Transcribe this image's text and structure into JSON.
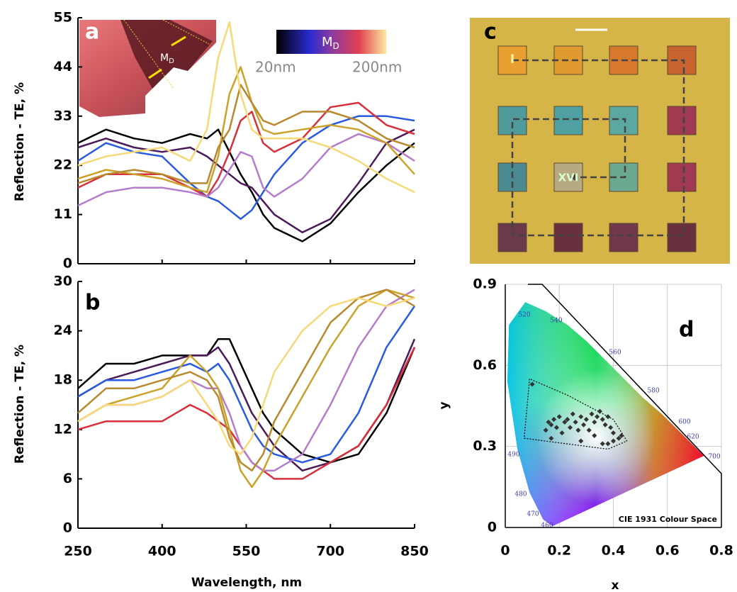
{
  "chart_data": [
    {
      "type": "line",
      "panel_label": "a",
      "ylabel": "Reflection - TE, %",
      "x": [
        250,
        300,
        350,
        400,
        450,
        480,
        500,
        520,
        540,
        560,
        580,
        600,
        650,
        700,
        750,
        800,
        850
      ],
      "xlim": [
        250,
        850
      ],
      "ylim": [
        0,
        55
      ],
      "yticks": [
        0,
        11,
        22,
        33,
        44,
        55
      ],
      "series": [
        {
          "color": "#000000",
          "values": [
            27,
            30,
            28,
            27,
            29,
            28,
            30,
            25,
            20,
            16,
            11,
            8,
            5,
            9,
            16,
            22,
            27
          ]
        },
        {
          "color": "#4a1a5a",
          "values": [
            26,
            28,
            26,
            25,
            26,
            24,
            22,
            20,
            18,
            17,
            14,
            11,
            7,
            10,
            18,
            27,
            30
          ]
        },
        {
          "color": "#2a5ae0",
          "values": [
            23,
            27,
            25,
            24,
            18,
            15,
            14,
            12,
            10,
            12,
            16,
            20,
            27,
            31,
            33,
            33,
            32
          ]
        },
        {
          "color": "#d8303a",
          "values": [
            17,
            20,
            20,
            20,
            17,
            15,
            19,
            25,
            32,
            34,
            27,
            25,
            28,
            35,
            36,
            31,
            29
          ]
        },
        {
          "color": "#b67ccc",
          "values": [
            13,
            16,
            17,
            17,
            16,
            15,
            17,
            21,
            25,
            24,
            17,
            15,
            19,
            26,
            29,
            27,
            23
          ]
        },
        {
          "color": "#caa22a",
          "values": [
            19,
            21,
            20,
            19,
            17,
            16,
            24,
            38,
            44,
            36,
            30,
            29,
            30,
            31,
            30,
            27,
            20
          ]
        },
        {
          "color": "#b8892e",
          "values": [
            18,
            20,
            21,
            20,
            18,
            18,
            26,
            30,
            40,
            36,
            32,
            31,
            34,
            34,
            32,
            28,
            26
          ]
        },
        {
          "color": "#f6d978",
          "values": [
            22,
            24,
            25,
            26,
            23,
            30,
            46,
            54,
            38,
            30,
            28,
            28,
            28,
            26,
            23,
            19,
            16
          ]
        }
      ],
      "inset_label": {
        "main": "M",
        "sub": "D"
      },
      "colorbar": {
        "label": {
          "main": "M",
          "sub": "D"
        },
        "min_label": "20nm",
        "max_label": "200nm"
      }
    },
    {
      "type": "line",
      "panel_label": "b",
      "ylabel": "Reflection - TE, %",
      "xlabel": "Wavelength, nm",
      "x": [
        250,
        300,
        350,
        400,
        450,
        480,
        500,
        520,
        540,
        560,
        580,
        600,
        650,
        700,
        750,
        800,
        850
      ],
      "xlim": [
        250,
        850
      ],
      "xticks": [
        250,
        400,
        550,
        700,
        850
      ],
      "ylim": [
        0,
        30
      ],
      "yticks": [
        0,
        6,
        12,
        18,
        24,
        30
      ],
      "series": [
        {
          "color": "#000000",
          "values": [
            17,
            20,
            20,
            21,
            21,
            21,
            23,
            23,
            20,
            17,
            14,
            12,
            9,
            8,
            9,
            14,
            22
          ]
        },
        {
          "color": "#4a1a5a",
          "values": [
            16,
            18,
            19,
            20,
            21,
            21,
            22,
            20,
            17,
            14,
            12,
            10,
            7,
            8,
            10,
            15,
            23
          ]
        },
        {
          "color": "#2a5ae0",
          "values": [
            16,
            18,
            18,
            19,
            20,
            19,
            20,
            18,
            15,
            12,
            10,
            9,
            8,
            9,
            14,
            22,
            27
          ]
        },
        {
          "color": "#d8303a",
          "values": [
            12,
            13,
            13,
            13,
            15,
            14,
            13,
            12,
            10,
            8,
            7,
            6,
            6,
            8,
            10,
            15,
            22
          ]
        },
        {
          "color": "#b67ccc",
          "values": [
            13,
            15,
            15,
            16,
            18,
            17,
            17,
            14,
            10,
            8,
            7,
            7,
            9,
            15,
            22,
            27,
            29
          ]
        },
        {
          "color": "#caa22a",
          "values": [
            13,
            15,
            16,
            17,
            21,
            19,
            17,
            12,
            7,
            5,
            7,
            10,
            16,
            22,
            27,
            29,
            28
          ]
        },
        {
          "color": "#b8892e",
          "values": [
            14,
            17,
            17,
            18,
            19,
            18,
            16,
            11,
            8,
            7,
            9,
            13,
            19,
            25,
            28,
            29,
            27
          ]
        },
        {
          "color": "#f6d978",
          "values": [
            13,
            15,
            15,
            16,
            18,
            15,
            13,
            10,
            9,
            11,
            15,
            19,
            24,
            27,
            28,
            27,
            28
          ]
        }
      ]
    },
    {
      "type": "scatter",
      "panel_label": "d",
      "xlabel": "x",
      "ylabel": "y",
      "caption": "CIE 1931 Colour Space",
      "xlim": [
        0,
        0.8
      ],
      "xticks": [
        0,
        0.2,
        0.4,
        0.6,
        0.8
      ],
      "ylim": [
        0,
        0.9
      ],
      "yticks": [
        0,
        0.3,
        0.6,
        0.9
      ],
      "grid": true,
      "color": "#333333",
      "x": [
        0.15,
        0.16,
        0.17,
        0.18,
        0.19,
        0.2,
        0.21,
        0.22,
        0.23,
        0.24,
        0.25,
        0.26,
        0.27,
        0.28,
        0.29,
        0.3,
        0.32,
        0.33,
        0.34,
        0.35,
        0.36,
        0.37,
        0.38,
        0.39,
        0.4,
        0.4,
        0.38,
        0.36,
        0.33,
        0.42,
        0.43,
        0.1,
        0.31,
        0.28,
        0.17
      ],
      "values": [
        0.36,
        0.39,
        0.38,
        0.4,
        0.37,
        0.41,
        0.35,
        0.39,
        0.4,
        0.37,
        0.42,
        0.39,
        0.36,
        0.41,
        0.38,
        0.4,
        0.42,
        0.39,
        0.41,
        0.43,
        0.4,
        0.38,
        0.41,
        0.37,
        0.35,
        0.32,
        0.31,
        0.31,
        0.34,
        0.33,
        0.34,
        0.53,
        0.36,
        0.32,
        0.33
      ],
      "outline": {
        "x": [
          0.09,
          0.07,
          0.38,
          0.45,
          0.4,
          0.23,
          0.09
        ],
        "y": [
          0.55,
          0.33,
          0.29,
          0.32,
          0.4,
          0.49,
          0.55
        ]
      },
      "locus_labels": [
        460,
        470,
        480,
        490,
        520,
        540,
        560,
        580,
        600,
        620,
        700
      ]
    }
  ],
  "micrograph": {
    "panel_label": "c",
    "markers": [
      "I",
      "XVI"
    ]
  }
}
